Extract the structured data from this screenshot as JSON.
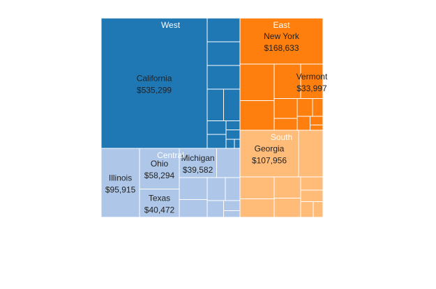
{
  "chart_data": {
    "type": "treemap",
    "value_format": "currency_usd",
    "colors": {
      "West": "#1f77b4",
      "East": "#ff7f0e",
      "Central": "#aec7e8",
      "South": "#ffbb78",
      "border": "#ffffff",
      "label_text": "#222222",
      "region_label_text": "#ffffff"
    },
    "regions": [
      {
        "name": "West",
        "items": [
          {
            "name": "California",
            "value": 535299,
            "label": "California",
            "value_label": "$535,299"
          },
          {
            "name": "",
            "value": 30000
          },
          {
            "name": "",
            "value": 30000
          },
          {
            "name": "",
            "value": 30000
          },
          {
            "name": "",
            "value": 20000
          },
          {
            "name": "",
            "value": 20000
          },
          {
            "name": "",
            "value": 10000
          },
          {
            "name": "",
            "value": 10000
          },
          {
            "name": "",
            "value": 5000
          },
          {
            "name": "",
            "value": 5000
          },
          {
            "name": "",
            "value": 3000
          },
          {
            "name": "",
            "value": 2000
          }
        ]
      },
      {
        "name": "East",
        "items": [
          {
            "name": "New York",
            "value": 168633,
            "label": "New York",
            "value_label": "$168,633"
          },
          {
            "name": "",
            "value": 55000
          },
          {
            "name": "",
            "value": 45000
          },
          {
            "name": "",
            "value": 40000
          },
          {
            "name": "Vermont",
            "value": 33997,
            "label": "Vermont",
            "value_label": "$33,997"
          },
          {
            "name": "",
            "value": 20000
          },
          {
            "name": "",
            "value": 12000
          },
          {
            "name": "",
            "value": 12000
          },
          {
            "name": "",
            "value": 8000
          },
          {
            "name": "",
            "value": 8000
          },
          {
            "name": "",
            "value": 5000
          },
          {
            "name": "",
            "value": 3000
          }
        ]
      },
      {
        "name": "Central",
        "items": [
          {
            "name": "Illinois",
            "value": 95915,
            "label": "Illinois",
            "value_label": "$95,915"
          },
          {
            "name": "Ohio",
            "value": 58294,
            "label": "Ohio",
            "value_label": "$58,294"
          },
          {
            "name": "Texas",
            "value": 40472,
            "label": "Texas",
            "value_label": "$40,472"
          },
          {
            "name": "Michigan",
            "value": 39582,
            "label": "Michigan",
            "value_label": "$39,582"
          },
          {
            "name": "",
            "value": 25000
          },
          {
            "name": "",
            "value": 22000
          },
          {
            "name": "",
            "value": 18000
          },
          {
            "name": "",
            "value": 15000
          },
          {
            "name": "",
            "value": 12000
          },
          {
            "name": "",
            "value": 10000
          },
          {
            "name": "",
            "value": 6000
          },
          {
            "name": "",
            "value": 4000
          }
        ]
      },
      {
        "name": "South",
        "items": [
          {
            "name": "Georgia",
            "value": 107956,
            "label": "Georgia",
            "value_label": "$107,956"
          },
          {
            "name": "",
            "value": 45000
          },
          {
            "name": "",
            "value": 30000
          },
          {
            "name": "",
            "value": 25000
          },
          {
            "name": "",
            "value": 22000
          },
          {
            "name": "",
            "value": 20000
          },
          {
            "name": "",
            "value": 12000
          },
          {
            "name": "",
            "value": 10000
          },
          {
            "name": "",
            "value": 8000
          },
          {
            "name": "",
            "value": 6000
          }
        ]
      }
    ]
  }
}
